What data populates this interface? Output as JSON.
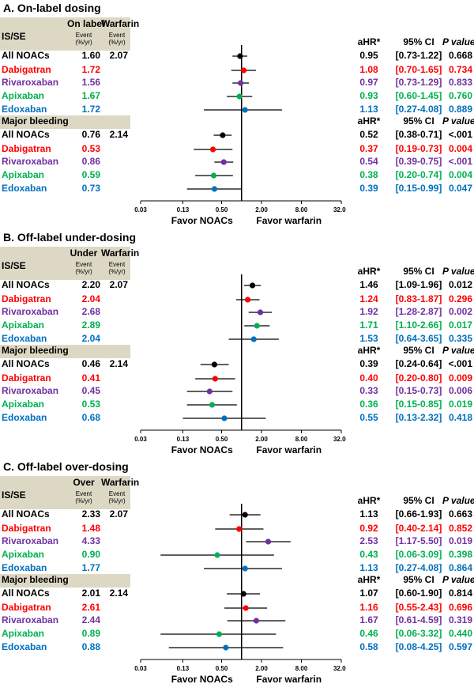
{
  "colors": {
    "All NOACs": "#000000",
    "Dabigatran": "#ff0000",
    "Rivaroxaban": "#7030a0",
    "Apixaban": "#00b050",
    "Edoxaban": "#0070c0",
    "header_bg": "#ddd8c4"
  },
  "axis": {
    "ticks": [
      0.03,
      0.13,
      0.5,
      2,
      8,
      32
    ],
    "tick_labels": [
      "0.03",
      "0.13",
      "0.50",
      "2.00",
      "8.00",
      "32.00"
    ],
    "favor_left": "Favor NOACs",
    "favor_right": "Favor warfarin"
  },
  "chart_data": [
    {
      "type": "forest",
      "title": "A. On-label dosing",
      "col1_label": "On label",
      "col2_label": "Warfarin",
      "col_sublabel": "Event (%/yr)",
      "x_scale": "log",
      "xlim": [
        0.03,
        32
      ],
      "reference_line": 1,
      "result_headers": [
        "aHR*",
        "95% CI",
        "P value"
      ],
      "groups": [
        {
          "name": "IS/SE",
          "rows": [
            {
              "label": "All NOACs",
              "event1": "1.60",
              "event2": "2.07",
              "hr": 0.95,
              "lo": 0.73,
              "hi": 1.22,
              "hr_text": "0.95",
              "ci_text": "[0.73-1.22]",
              "p": "0.668"
            },
            {
              "label": "Dabigatran",
              "event1": "1.72",
              "event2": "",
              "hr": 1.08,
              "lo": 0.7,
              "hi": 1.65,
              "hr_text": "1.08",
              "ci_text": "[0.70-1.65]",
              "p": "0.734"
            },
            {
              "label": "Rivaroxaban",
              "event1": "1.56",
              "event2": "",
              "hr": 0.97,
              "lo": 0.73,
              "hi": 1.29,
              "hr_text": "0.97",
              "ci_text": "[0.73-1.29]",
              "p": "0.833"
            },
            {
              "label": "Apixaban",
              "event1": "1.67",
              "event2": "",
              "hr": 0.93,
              "lo": 0.6,
              "hi": 1.45,
              "hr_text": "0.93",
              "ci_text": "[0.60-1.45]",
              "p": "0.760"
            },
            {
              "label": "Edoxaban",
              "event1": "1.72",
              "event2": "",
              "hr": 1.13,
              "lo": 0.27,
              "hi": 4.08,
              "hr_text": "1.13",
              "ci_text": "[0.27-4.08]",
              "p": "0.889"
            }
          ]
        },
        {
          "name": "Major bleeding",
          "rows": [
            {
              "label": "All NOACs",
              "event1": "0.76",
              "event2": "2.14",
              "hr": 0.52,
              "lo": 0.38,
              "hi": 0.71,
              "hr_text": "0.52",
              "ci_text": "[0.38-0.71]",
              "p": "<.001"
            },
            {
              "label": "Dabigatran",
              "event1": "0.53",
              "event2": "",
              "hr": 0.37,
              "lo": 0.19,
              "hi": 0.73,
              "hr_text": "0.37",
              "ci_text": "[0.19-0.73]",
              "p": "0.004"
            },
            {
              "label": "Rivaroxaban",
              "event1": "0.86",
              "event2": "",
              "hr": 0.54,
              "lo": 0.39,
              "hi": 0.75,
              "hr_text": "0.54",
              "ci_text": "[0.39-0.75]",
              "p": "<.001"
            },
            {
              "label": "Apixaban",
              "event1": "0.59",
              "event2": "",
              "hr": 0.38,
              "lo": 0.2,
              "hi": 0.74,
              "hr_text": "0.38",
              "ci_text": "[0.20-0.74]",
              "p": "0.004"
            },
            {
              "label": "Edoxaban",
              "event1": "0.73",
              "event2": "",
              "hr": 0.39,
              "lo": 0.15,
              "hi": 0.99,
              "hr_text": "0.39",
              "ci_text": "[0.15-0.99]",
              "p": "0.047"
            }
          ]
        }
      ]
    },
    {
      "type": "forest",
      "title": "B. Off-label under-dosing",
      "col1_label": "Under",
      "col2_label": "Warfarin",
      "col_sublabel": "Event (%/yr)",
      "x_scale": "log",
      "xlim": [
        0.03,
        32
      ],
      "reference_line": 1,
      "result_headers": [
        "aHR*",
        "95% CI",
        "P value"
      ],
      "groups": [
        {
          "name": "IS/SE",
          "rows": [
            {
              "label": "All NOACs",
              "event1": "2.20",
              "event2": "2.07",
              "hr": 1.46,
              "lo": 1.09,
              "hi": 1.96,
              "hr_text": "1.46",
              "ci_text": "[1.09-1.96]",
              "p": "0.012"
            },
            {
              "label": "Dabigatran",
              "event1": "2.04",
              "event2": "",
              "hr": 1.24,
              "lo": 0.83,
              "hi": 1.87,
              "hr_text": "1.24",
              "ci_text": "[0.83-1.87]",
              "p": "0.296"
            },
            {
              "label": "Rivaroxaban",
              "event1": "2.68",
              "event2": "",
              "hr": 1.92,
              "lo": 1.28,
              "hi": 2.87,
              "hr_text": "1.92",
              "ci_text": "[1.28-2.87]",
              "p": "0.002"
            },
            {
              "label": "Apixaban",
              "event1": "2.89",
              "event2": "",
              "hr": 1.71,
              "lo": 1.1,
              "hi": 2.66,
              "hr_text": "1.71",
              "ci_text": "[1.10-2.66]",
              "p": "0.017"
            },
            {
              "label": "Edoxaban",
              "event1": "2.04",
              "event2": "",
              "hr": 1.53,
              "lo": 0.64,
              "hi": 3.65,
              "hr_text": "1.53",
              "ci_text": "[0.64-3.65]",
              "p": "0.335"
            }
          ]
        },
        {
          "name": "Major bleeding",
          "rows": [
            {
              "label": "All NOACs",
              "event1": "0.46",
              "event2": "2.14",
              "hr": 0.39,
              "lo": 0.24,
              "hi": 0.64,
              "hr_text": "0.39",
              "ci_text": "[0.24-0.64]",
              "p": "<.001"
            },
            {
              "label": "Dabigatran",
              "event1": "0.41",
              "event2": "",
              "hr": 0.4,
              "lo": 0.2,
              "hi": 0.8,
              "hr_text": "0.40",
              "ci_text": "[0.20-0.80]",
              "p": "0.009"
            },
            {
              "label": "Rivaroxaban",
              "event1": "0.45",
              "event2": "",
              "hr": 0.33,
              "lo": 0.15,
              "hi": 0.73,
              "hr_text": "0.33",
              "ci_text": "[0.15-0.73]",
              "p": "0.006"
            },
            {
              "label": "Apixaban",
              "event1": "0.53",
              "event2": "",
              "hr": 0.36,
              "lo": 0.15,
              "hi": 0.85,
              "hr_text": "0.36",
              "ci_text": "[0.15-0.85]",
              "p": "0.019"
            },
            {
              "label": "Edoxaban",
              "event1": "0.68",
              "event2": "",
              "hr": 0.55,
              "lo": 0.13,
              "hi": 2.32,
              "hr_text": "0.55",
              "ci_text": "[0.13-2.32]",
              "p": "0.418"
            }
          ]
        }
      ]
    },
    {
      "type": "forest",
      "title": "C. Off-label over-dosing",
      "col1_label": "Over",
      "col2_label": "Warfarin",
      "col_sublabel": "Event (%/yr)",
      "x_scale": "log",
      "xlim": [
        0.03,
        32
      ],
      "reference_line": 1,
      "result_headers": [
        "aHR*",
        "95% CI",
        "P value"
      ],
      "groups": [
        {
          "name": "IS/SE",
          "rows": [
            {
              "label": "All NOACs",
              "event1": "2.33",
              "event2": "2.07",
              "hr": 1.13,
              "lo": 0.66,
              "hi": 1.93,
              "hr_text": "1.13",
              "ci_text": "[0.66-1.93]",
              "p": "0.663"
            },
            {
              "label": "Dabigatran",
              "event1": "1.48",
              "event2": "",
              "hr": 0.92,
              "lo": 0.4,
              "hi": 2.14,
              "hr_text": "0.92",
              "ci_text": "[0.40-2.14]",
              "p": "0.852"
            },
            {
              "label": "Rivaroxaban",
              "event1": "4.33",
              "event2": "",
              "hr": 2.53,
              "lo": 1.17,
              "hi": 5.5,
              "hr_text": "2.53",
              "ci_text": "[1.17-5.50]",
              "p": "0.019"
            },
            {
              "label": "Apixaban",
              "event1": "0.90",
              "event2": "",
              "hr": 0.43,
              "lo": 0.06,
              "hi": 3.09,
              "hr_text": "0.43",
              "ci_text": "[0.06-3.09]",
              "p": "0.398"
            },
            {
              "label": "Edoxaban",
              "event1": "1.77",
              "event2": "",
              "hr": 1.13,
              "lo": 0.27,
              "hi": 4.08,
              "hr_text": "1.13",
              "ci_text": "[0.27-4.08]",
              "p": "0.864"
            }
          ]
        },
        {
          "name": "Major bleeding",
          "rows": [
            {
              "label": "All NOACs",
              "event1": "2.01",
              "event2": "2.14",
              "hr": 1.07,
              "lo": 0.6,
              "hi": 1.9,
              "hr_text": "1.07",
              "ci_text": "[0.60-1.90]",
              "p": "0.814"
            },
            {
              "label": "Dabigatran",
              "event1": "2.61",
              "event2": "",
              "hr": 1.16,
              "lo": 0.55,
              "hi": 2.43,
              "hr_text": "1.16",
              "ci_text": "[0.55-2.43]",
              "p": "0.696"
            },
            {
              "label": "Rivaroxaban",
              "event1": "2.44",
              "event2": "",
              "hr": 1.67,
              "lo": 0.61,
              "hi": 4.59,
              "hr_text": "1.67",
              "ci_text": "[0.61-4.59]",
              "p": "0.319"
            },
            {
              "label": "Apixaban",
              "event1": "0.89",
              "event2": "",
              "hr": 0.46,
              "lo": 0.06,
              "hi": 3.32,
              "hr_text": "0.46",
              "ci_text": "[0.06-3.32]",
              "p": "0.440"
            },
            {
              "label": "Edoxaban",
              "event1": "0.88",
              "event2": "",
              "hr": 0.58,
              "lo": 0.08,
              "hi": 4.25,
              "hr_text": "0.58",
              "ci_text": "[0.08-4.25]",
              "p": "0.597"
            }
          ]
        }
      ]
    }
  ]
}
